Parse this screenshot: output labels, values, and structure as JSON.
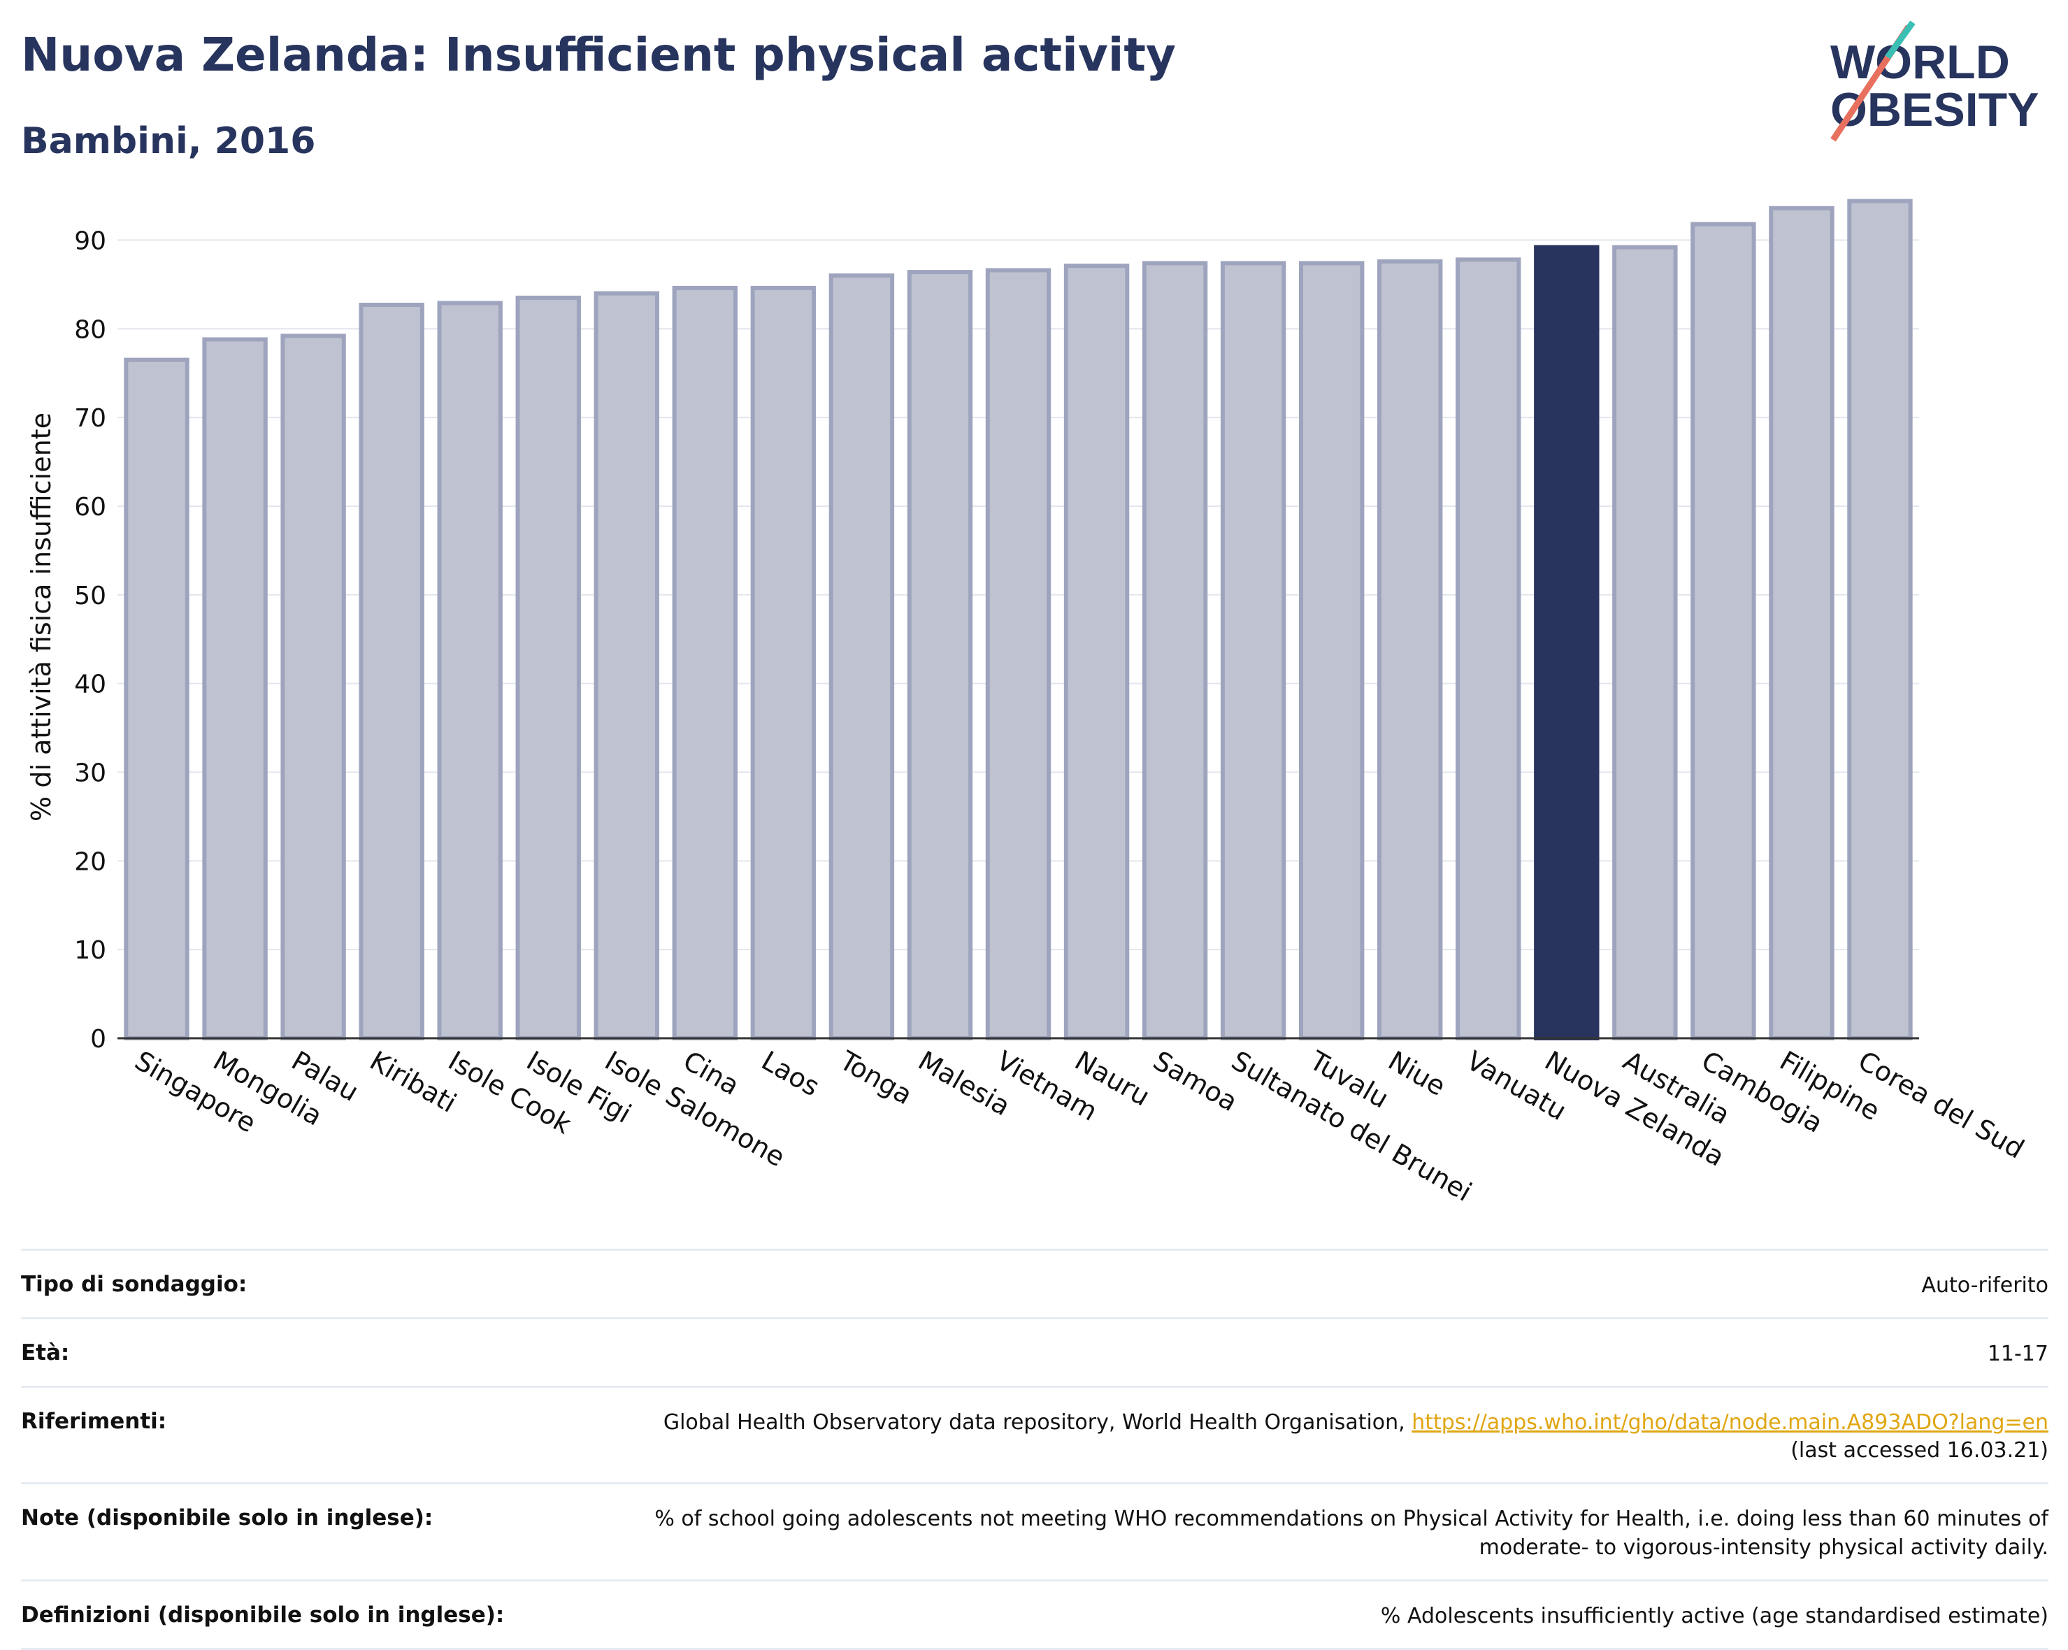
{
  "title": "Nuova Zelanda: Insufficient physical activity",
  "subtitle": "Bambini, 2016",
  "logo": {
    "line1": "WORLD",
    "line2": "OBESITY"
  },
  "colors": {
    "bar": "#bfc3d1",
    "bar_border": "#9ea4bd",
    "highlight": "#28345e",
    "title": "#27345e",
    "link": "#e0a612"
  },
  "chart_data": {
    "type": "bar",
    "title": "Nuova Zelanda: Insufficient physical activity",
    "subtitle": "Bambini, 2016",
    "xlabel": "",
    "ylabel": "% di attività fisica insufficiente",
    "ylim": [
      0,
      95
    ],
    "yticks": [
      0,
      10,
      20,
      30,
      40,
      50,
      60,
      70,
      80,
      90
    ],
    "grid": true,
    "highlight": "Nuova Zelanda",
    "categories": [
      "Singapore",
      "Mongolia",
      "Palau",
      "Kiribati",
      "Isole Cook",
      "Isole Figi",
      "Isole Salomone",
      "Cina",
      "Laos",
      "Tonga",
      "Malesia",
      "Vietnam",
      "Nauru",
      "Samoa",
      "Sultanato del Brunei",
      "Tuvalu",
      "Niue",
      "Vanuatu",
      "Nuova Zelanda",
      "Australia",
      "Cambogia",
      "Filippine",
      "Corea del Sud"
    ],
    "values": [
      76.5,
      78.8,
      79.2,
      82.7,
      82.9,
      83.5,
      84.0,
      84.6,
      84.6,
      86.0,
      86.4,
      86.6,
      87.1,
      87.4,
      87.4,
      87.4,
      87.6,
      87.8,
      89.2,
      89.2,
      91.8,
      93.6,
      94.4
    ]
  },
  "info": [
    {
      "label": "Tipo di sondaggio:",
      "value": "Auto-riferito"
    },
    {
      "label": "Età:",
      "value": "11-17"
    },
    {
      "label": "Riferimenti:",
      "value": "Global Health Observatory data repository, World Health Organisation,",
      "link": "https://apps.who.int/gho/data/node.main.A893ADO?lang=en",
      "value2": "(last accessed 16.03.21)"
    },
    {
      "label": "Note (disponibile solo in inglese):",
      "value": "% of school going adolescents not meeting WHO recommendations on Physical Activity for Health, i.e. doing less than 60 minutes of moderate- to vigorous-intensity physical activity daily."
    },
    {
      "label": "Definizioni (disponibile solo in inglese):",
      "value": "% Adolescents insufficiently active (age standardised estimate)"
    }
  ]
}
